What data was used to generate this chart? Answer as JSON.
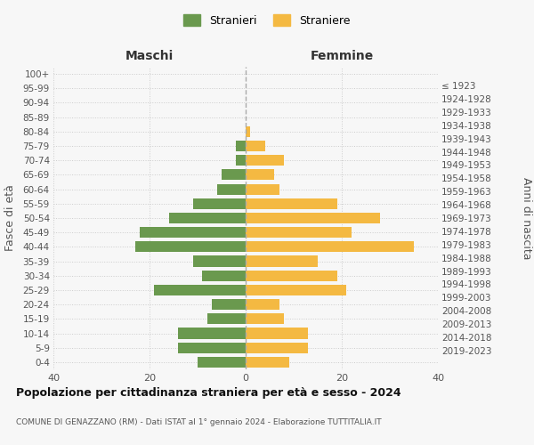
{
  "age_groups": [
    "0-4",
    "5-9",
    "10-14",
    "15-19",
    "20-24",
    "25-29",
    "30-34",
    "35-39",
    "40-44",
    "45-49",
    "50-54",
    "55-59",
    "60-64",
    "65-69",
    "70-74",
    "75-79",
    "80-84",
    "85-89",
    "90-94",
    "95-99",
    "100+"
  ],
  "birth_years": [
    "2019-2023",
    "2014-2018",
    "2009-2013",
    "2004-2008",
    "1999-2003",
    "1994-1998",
    "1989-1993",
    "1984-1988",
    "1979-1983",
    "1974-1978",
    "1969-1973",
    "1964-1968",
    "1959-1963",
    "1954-1958",
    "1949-1953",
    "1944-1948",
    "1939-1943",
    "1934-1938",
    "1929-1933",
    "1924-1928",
    "≤ 1923"
  ],
  "maschi": [
    10,
    14,
    14,
    8,
    7,
    19,
    9,
    11,
    23,
    22,
    16,
    11,
    6,
    5,
    2,
    2,
    0,
    0,
    0,
    0,
    0
  ],
  "femmine": [
    9,
    13,
    13,
    8,
    7,
    21,
    19,
    15,
    35,
    22,
    28,
    19,
    7,
    6,
    8,
    4,
    1,
    0,
    0,
    0,
    0
  ],
  "male_color": "#6a994e",
  "female_color": "#f4b942",
  "bg_color": "#f7f7f7",
  "grid_color": "#cccccc",
  "bar_height": 0.75,
  "xlim": 40,
  "title": "Popolazione per cittadinanza straniera per età e sesso - 2024",
  "subtitle": "COMUNE DI GENAZZANO (RM) - Dati ISTAT al 1° gennaio 2024 - Elaborazione TUTTITALIA.IT",
  "xlabel_left": "Maschi",
  "xlabel_right": "Femmine",
  "ylabel_left": "Fasce di età",
  "ylabel_right": "Anni di nascita",
  "legend_stranieri": "Stranieri",
  "legend_straniere": "Straniere",
  "xticks": [
    -40,
    -20,
    0,
    20,
    40
  ]
}
